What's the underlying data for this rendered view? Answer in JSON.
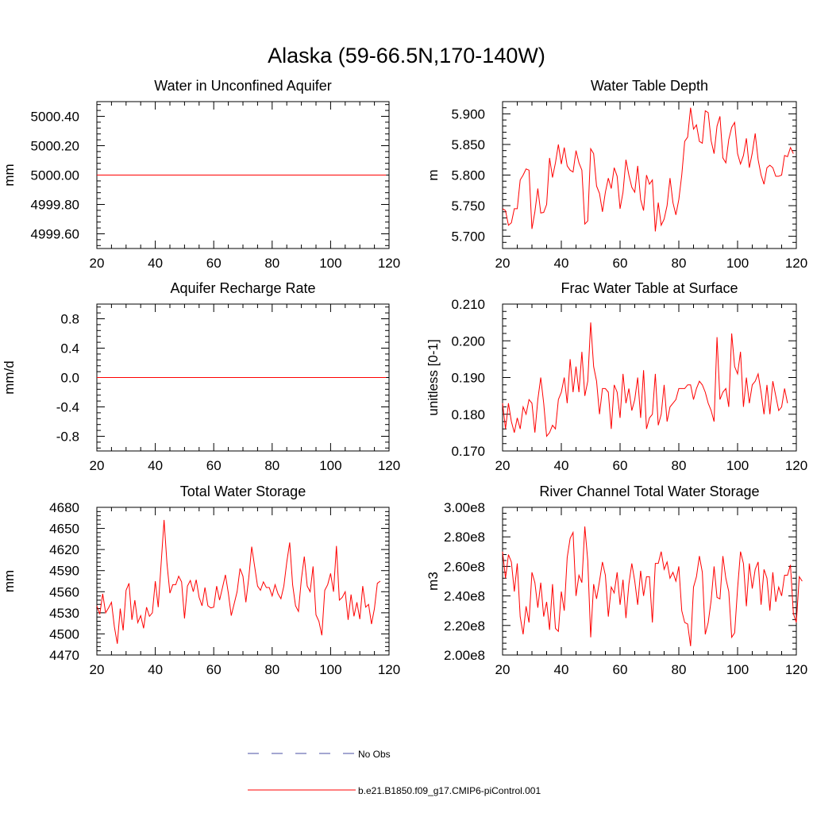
{
  "figure": {
    "title": "Alaska (59-66.5N,170-140W)"
  },
  "legend": {
    "items": [
      {
        "label": "No Obs",
        "style": "dashed",
        "color": "#4a4fa3"
      },
      {
        "label": "b.e21.B1850.f09_g17.CMIP6-piControl.001",
        "style": "solid",
        "color": "#ff0000"
      }
    ]
  },
  "chart_data": [
    {
      "type": "line",
      "title": "Water in Unconfined Aquifer",
      "xlabel": "",
      "ylabel": "mm",
      "xlim": [
        20,
        120
      ],
      "ylim": [
        4999.5,
        5000.5
      ],
      "xticks": [
        20,
        40,
        60,
        80,
        100,
        120
      ],
      "yticks": [
        4999.6,
        4999.8,
        5000.0,
        5000.2,
        5000.4
      ],
      "ytick_labels": [
        "4999.60",
        "4999.80",
        "5000.00",
        "5000.20",
        "5000.40"
      ],
      "series": [
        {
          "color": "#ff0000",
          "x": [
            20,
            119
          ],
          "values": [
            5000.0,
            5000.0
          ]
        }
      ]
    },
    {
      "type": "line",
      "title": "Water Table Depth",
      "xlabel": "",
      "ylabel": "m",
      "xlim": [
        20,
        120
      ],
      "ylim": [
        5.68,
        5.92
      ],
      "xticks": [
        20,
        40,
        60,
        80,
        100,
        120
      ],
      "yticks": [
        5.7,
        5.75,
        5.8,
        5.85,
        5.9
      ],
      "ytick_labels": [
        "5.700",
        "5.750",
        "5.800",
        "5.850",
        "5.900"
      ],
      "series": [
        {
          "color": "#ff0000",
          "x_start": 20,
          "values": [
            5.745,
            5.742,
            5.718,
            5.722,
            5.745,
            5.745,
            5.792,
            5.8,
            5.81,
            5.808,
            5.712,
            5.74,
            5.778,
            5.738,
            5.739,
            5.752,
            5.828,
            5.796,
            5.82,
            5.85,
            5.818,
            5.845,
            5.815,
            5.808,
            5.805,
            5.84,
            5.82,
            5.808,
            5.72,
            5.725,
            5.843,
            5.835,
            5.782,
            5.77,
            5.74,
            5.772,
            5.795,
            5.778,
            5.812,
            5.798,
            5.745,
            5.772,
            5.825,
            5.8,
            5.78,
            5.772,
            5.815,
            5.76,
            5.742,
            5.8,
            5.785,
            5.792,
            5.708,
            5.755,
            5.718,
            5.728,
            5.75,
            5.795,
            5.755,
            5.735,
            5.76,
            5.8,
            5.855,
            5.862,
            5.91,
            5.875,
            5.882,
            5.855,
            5.852,
            5.905,
            5.902,
            5.856,
            5.835,
            5.88,
            5.896,
            5.828,
            5.82,
            5.858,
            5.878,
            5.886,
            5.835,
            5.818,
            5.832,
            5.86,
            5.812,
            5.836,
            5.868,
            5.825,
            5.8,
            5.785,
            5.812,
            5.816,
            5.812,
            5.798,
            5.798,
            5.8,
            5.832,
            5.83,
            5.845,
            5.835
          ]
        }
      ]
    },
    {
      "type": "line",
      "title": "Aquifer Recharge Rate",
      "xlabel": "",
      "ylabel": "mm/d",
      "xlim": [
        20,
        120
      ],
      "ylim": [
        -1.0,
        1.0
      ],
      "xticks": [
        20,
        40,
        60,
        80,
        100,
        120
      ],
      "yticks": [
        -0.8,
        -0.4,
        0.0,
        0.4,
        0.8
      ],
      "ytick_labels": [
        "-0.8",
        "-0.4",
        "0.0",
        "0.4",
        "0.8"
      ],
      "series": [
        {
          "color": "#ff0000",
          "x": [
            20,
            119
          ],
          "values": [
            0.0,
            0.0
          ]
        }
      ]
    },
    {
      "type": "line",
      "title": "Frac Water Table at Surface",
      "xlabel": "",
      "ylabel": "unitless [0-1]",
      "xlim": [
        20,
        120
      ],
      "ylim": [
        0.17,
        0.21
      ],
      "xticks": [
        20,
        40,
        60,
        80,
        100,
        120
      ],
      "yticks": [
        0.17,
        0.18,
        0.19,
        0.2,
        0.21
      ],
      "ytick_labels": [
        "0.170",
        "0.180",
        "0.190",
        "0.200",
        "0.210"
      ],
      "series": [
        {
          "color": "#ff0000",
          "x_start": 20,
          "values": [
            0.183,
            0.176,
            0.183,
            0.178,
            0.175,
            0.179,
            0.176,
            0.182,
            0.18,
            0.184,
            0.183,
            0.175,
            0.184,
            0.19,
            0.183,
            0.174,
            0.175,
            0.177,
            0.176,
            0.184,
            0.186,
            0.19,
            0.183,
            0.195,
            0.186,
            0.193,
            0.186,
            0.197,
            0.185,
            0.189,
            0.205,
            0.193,
            0.189,
            0.18,
            0.187,
            0.187,
            0.186,
            0.176,
            0.188,
            0.186,
            0.179,
            0.191,
            0.183,
            0.187,
            0.181,
            0.184,
            0.19,
            0.179,
            0.192,
            0.176,
            0.179,
            0.18,
            0.191,
            0.177,
            0.18,
            0.188,
            0.178,
            0.182,
            0.183,
            0.184,
            0.187,
            0.187,
            0.187,
            0.188,
            0.188,
            0.184,
            0.187,
            0.189,
            0.188,
            0.186,
            0.183,
            0.181,
            0.178,
            0.201,
            0.184,
            0.186,
            0.187,
            0.182,
            0.202,
            0.193,
            0.191,
            0.197,
            0.182,
            0.19,
            0.183,
            0.188,
            0.189,
            0.191,
            0.186,
            0.18,
            0.188,
            0.18,
            0.189,
            0.185,
            0.181,
            0.182,
            0.187,
            0.183
          ]
        }
      ]
    },
    {
      "type": "line",
      "title": "Total Water Storage",
      "xlabel": "",
      "ylabel": "mm",
      "xlim": [
        20,
        120
      ],
      "ylim": [
        4470,
        4680
      ],
      "xticks": [
        20,
        40,
        60,
        80,
        100,
        120
      ],
      "yticks": [
        4470,
        4500,
        4530,
        4560,
        4590,
        4620,
        4650,
        4680
      ],
      "ytick_labels": [
        "4470",
        "4500",
        "4530",
        "4560",
        "4590",
        "4620",
        "4650",
        "4680"
      ],
      "series": [
        {
          "color": "#ff0000",
          "x_start": 20,
          "values": [
            4540,
            4528,
            4557,
            4530,
            4537,
            4545,
            4510,
            4486,
            4536,
            4505,
            4562,
            4572,
            4520,
            4548,
            4516,
            4526,
            4508,
            4538,
            4525,
            4530,
            4575,
            4538,
            4600,
            4662,
            4600,
            4558,
            4570,
            4570,
            4582,
            4574,
            4522,
            4568,
            4576,
            4560,
            4577,
            4552,
            4540,
            4566,
            4540,
            4537,
            4538,
            4568,
            4548,
            4566,
            4584,
            4558,
            4526,
            4543,
            4560,
            4593,
            4582,
            4545,
            4580,
            4624,
            4596,
            4568,
            4562,
            4574,
            4566,
            4566,
            4554,
            4570,
            4557,
            4550,
            4568,
            4602,
            4630,
            4570,
            4540,
            4532,
            4578,
            4610,
            4568,
            4560,
            4596,
            4527,
            4518,
            4498,
            4562,
            4570,
            4586,
            4560,
            4625,
            4548,
            4552,
            4560,
            4520,
            4556,
            4525,
            4545,
            4521,
            4568,
            4538,
            4542,
            4514,
            4536,
            4572,
            4575
          ]
        }
      ]
    },
    {
      "type": "line",
      "title": "River Channel Total Water Storage",
      "xlabel": "",
      "ylabel": "m3",
      "xlim": [
        20,
        120
      ],
      "ylim": [
        200000000,
        300000000
      ],
      "xticks": [
        20,
        40,
        60,
        80,
        100,
        120
      ],
      "yticks": [
        200000000,
        220000000,
        240000000,
        260000000,
        280000000,
        300000000
      ],
      "ytick_labels": [
        "2.00e8",
        "2.20e8",
        "2.40e8",
        "2.60e8",
        "2.80e8",
        "3.00e8"
      ],
      "series": [
        {
          "color": "#ff0000",
          "x_start": 20,
          "values": [
            270000000,
            252000000,
            268000000,
            263000000,
            243000000,
            262000000,
            226000000,
            214000000,
            233000000,
            222000000,
            256000000,
            249000000,
            232000000,
            249000000,
            226000000,
            236000000,
            217000000,
            248000000,
            218000000,
            216000000,
            243000000,
            230000000,
            266000000,
            279000000,
            283000000,
            240000000,
            254000000,
            249000000,
            287000000,
            264000000,
            212000000,
            248000000,
            238000000,
            250000000,
            263000000,
            254000000,
            226000000,
            246000000,
            242000000,
            256000000,
            234000000,
            251000000,
            225000000,
            248000000,
            262000000,
            250000000,
            234000000,
            257000000,
            240000000,
            253000000,
            253000000,
            222000000,
            262000000,
            262000000,
            270000000,
            258000000,
            263000000,
            252000000,
            256000000,
            250000000,
            260000000,
            230000000,
            222000000,
            221000000,
            206000000,
            246000000,
            253000000,
            267000000,
            256000000,
            214000000,
            222000000,
            237000000,
            260000000,
            239000000,
            238000000,
            267000000,
            252000000,
            243000000,
            212000000,
            215000000,
            245000000,
            270000000,
            262000000,
            233000000,
            262000000,
            245000000,
            258000000,
            263000000,
            234000000,
            258000000,
            252000000,
            230000000,
            256000000,
            236000000,
            246000000,
            240000000,
            254000000,
            254000000,
            261000000,
            228000000,
            222000000,
            253000000,
            250000000
          ]
        }
      ]
    }
  ]
}
